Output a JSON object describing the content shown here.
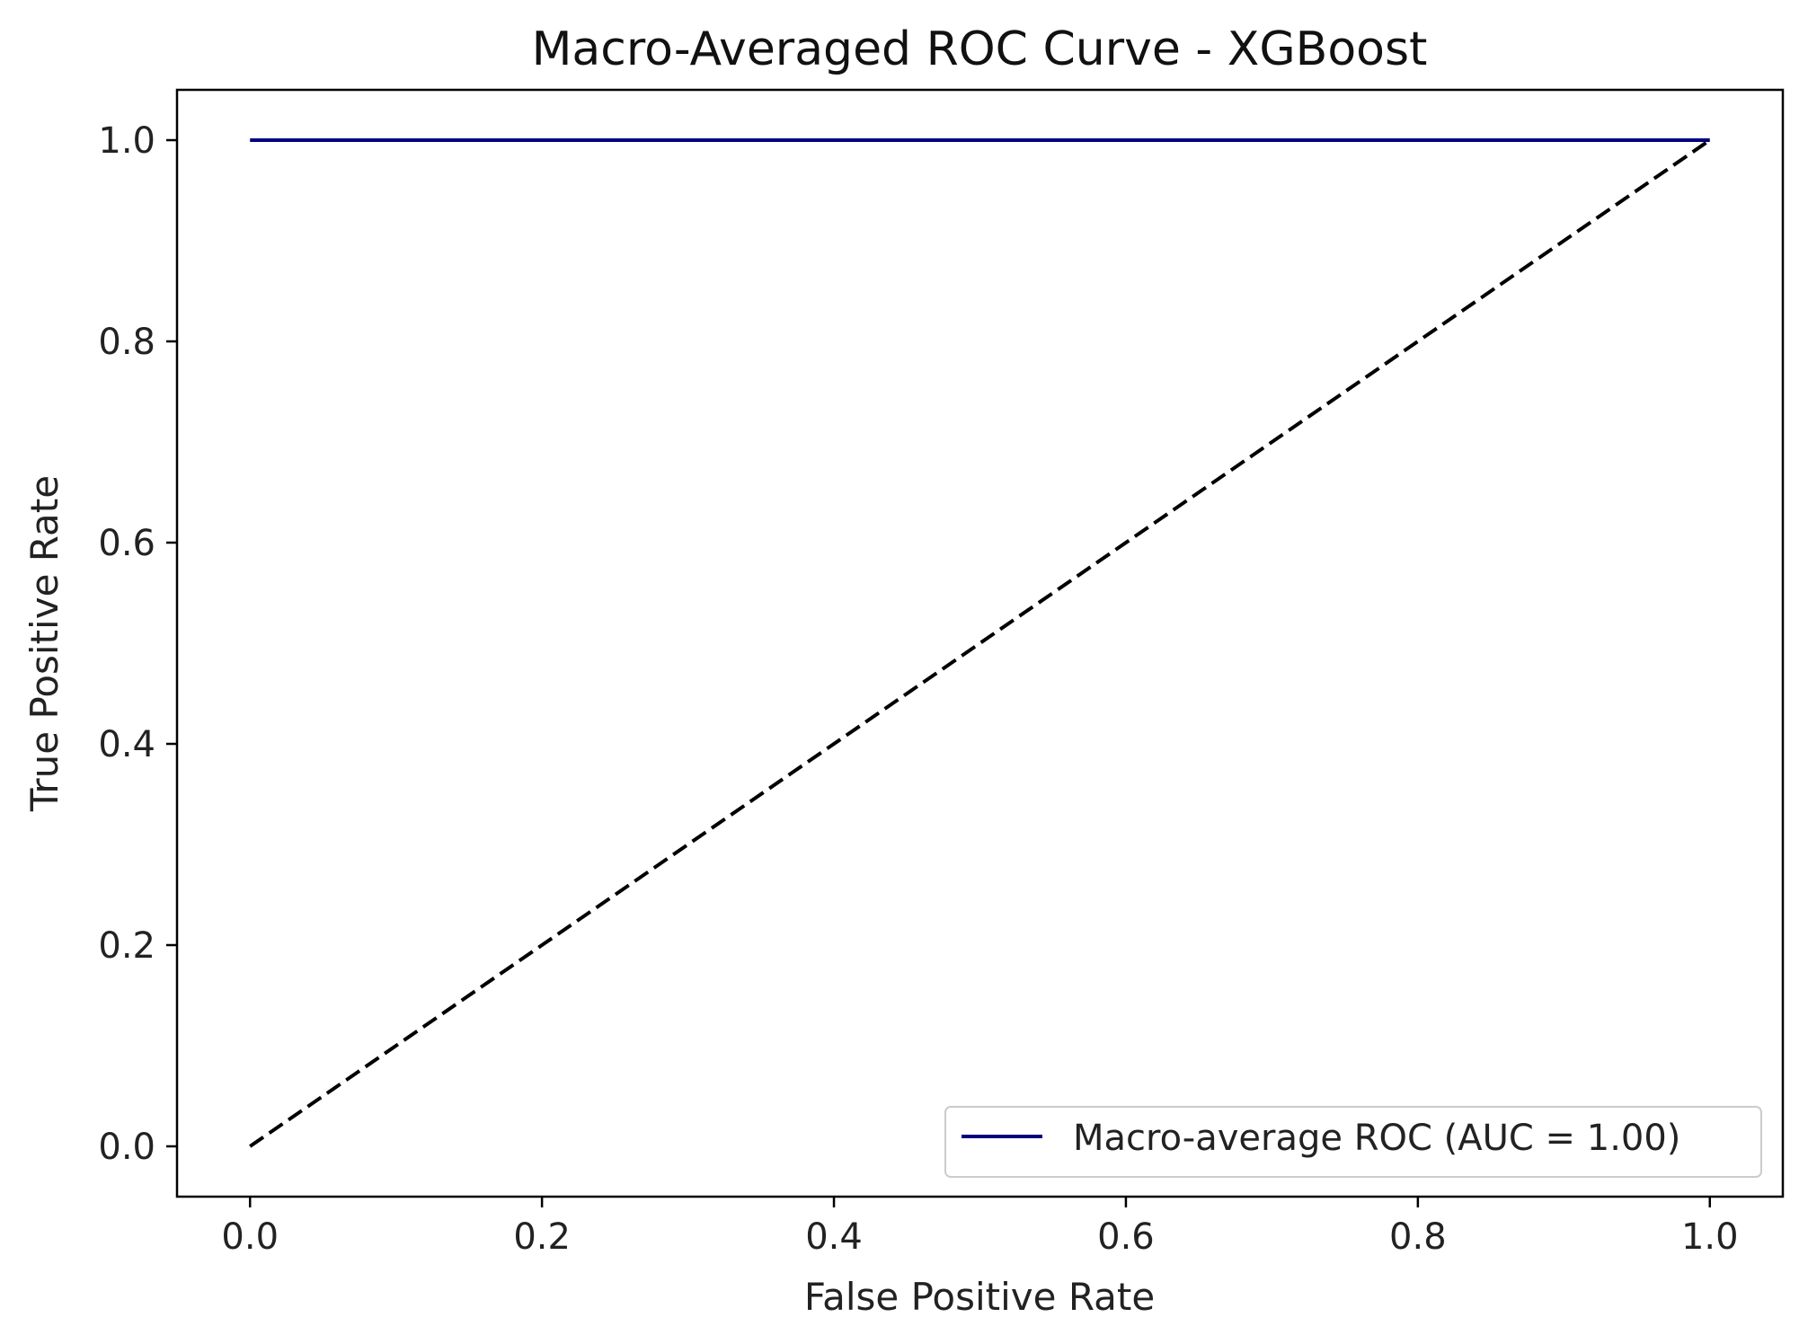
{
  "chart_data": {
    "type": "line",
    "title": "Macro-Averaged ROC Curve - XGBoost",
    "xlabel": "False Positive Rate",
    "ylabel": "True Positive Rate",
    "xlim": [
      -0.05,
      1.05
    ],
    "ylim": [
      -0.05,
      1.05
    ],
    "xticks": [
      0.0,
      0.2,
      0.4,
      0.6,
      0.8,
      1.0
    ],
    "yticks": [
      0.0,
      0.2,
      0.4,
      0.6,
      0.8,
      1.0
    ],
    "xtick_labels": [
      "0.0",
      "0.2",
      "0.4",
      "0.6",
      "0.8",
      "1.0"
    ],
    "ytick_labels": [
      "0.0",
      "0.2",
      "0.4",
      "0.6",
      "0.8",
      "1.0"
    ],
    "grid": false,
    "legend_position": "lower-right",
    "series": [
      {
        "name": "Macro-average ROC (AUC = 1.00)",
        "color": "#00007f",
        "style": "solid",
        "x": [
          0.0,
          1.0
        ],
        "y": [
          1.0,
          1.0
        ]
      },
      {
        "color": "#000000",
        "style": "dashed",
        "x": [
          0.0,
          1.0
        ],
        "y": [
          0.0,
          1.0
        ]
      }
    ]
  }
}
